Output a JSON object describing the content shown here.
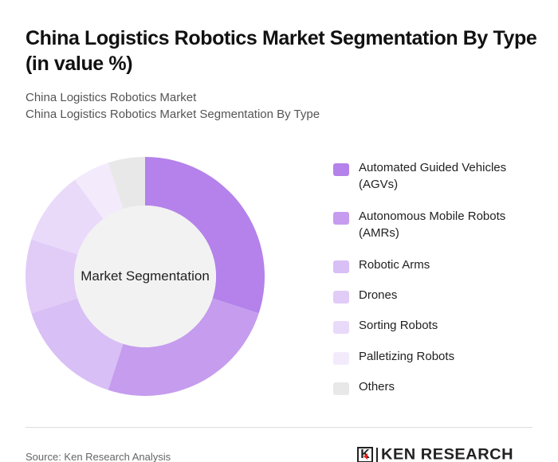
{
  "header": {
    "title": "China Logistics Robotics Market Segmentation By Type (in value %)",
    "breadcrumb_1": "China Logistics Robotics Market",
    "breadcrumb_2": "China Logistics Robotics Market Segmentation By Type"
  },
  "chart": {
    "center_label": "Market Segmentation"
  },
  "legend": {
    "items": [
      {
        "label": "Automated Guided Vehicles (AGVs)",
        "color": "#b482ea"
      },
      {
        "label": "Autonomous Mobile Robots (AMRs)",
        "color": "#c59cee"
      },
      {
        "label": "Robotic Arms",
        "color": "#d8bff5"
      },
      {
        "label": "Drones",
        "color": "#e1cbf7"
      },
      {
        "label": "Sorting Robots",
        "color": "#e9dafa"
      },
      {
        "label": "Palletizing Robots",
        "color": "#f3ebfc"
      },
      {
        "label": "Others",
        "color": "#e8e8e8"
      }
    ]
  },
  "footer": {
    "source": "Source: Ken Research Analysis",
    "logo_letter": "K",
    "logo_text": "KEN RESEARCH"
  },
  "chart_data": {
    "type": "pie",
    "subtype": "donut",
    "title": "China Logistics Robotics Market Segmentation By Type (in value %)",
    "center_label": "Market Segmentation",
    "categories": [
      "Automated Guided Vehicles (AGVs)",
      "Autonomous Mobile Robots (AMRs)",
      "Robotic Arms",
      "Drones",
      "Sorting Robots",
      "Palletizing Robots",
      "Others"
    ],
    "values": [
      30,
      25,
      15,
      10,
      10,
      5,
      5
    ],
    "colors": [
      "#b482ea",
      "#c59cee",
      "#d8bff5",
      "#e1cbf7",
      "#e9dafa",
      "#f3ebfc",
      "#e8e8e8"
    ],
    "unit": "%",
    "legend_position": "right",
    "start_angle": "top, clockwise"
  }
}
